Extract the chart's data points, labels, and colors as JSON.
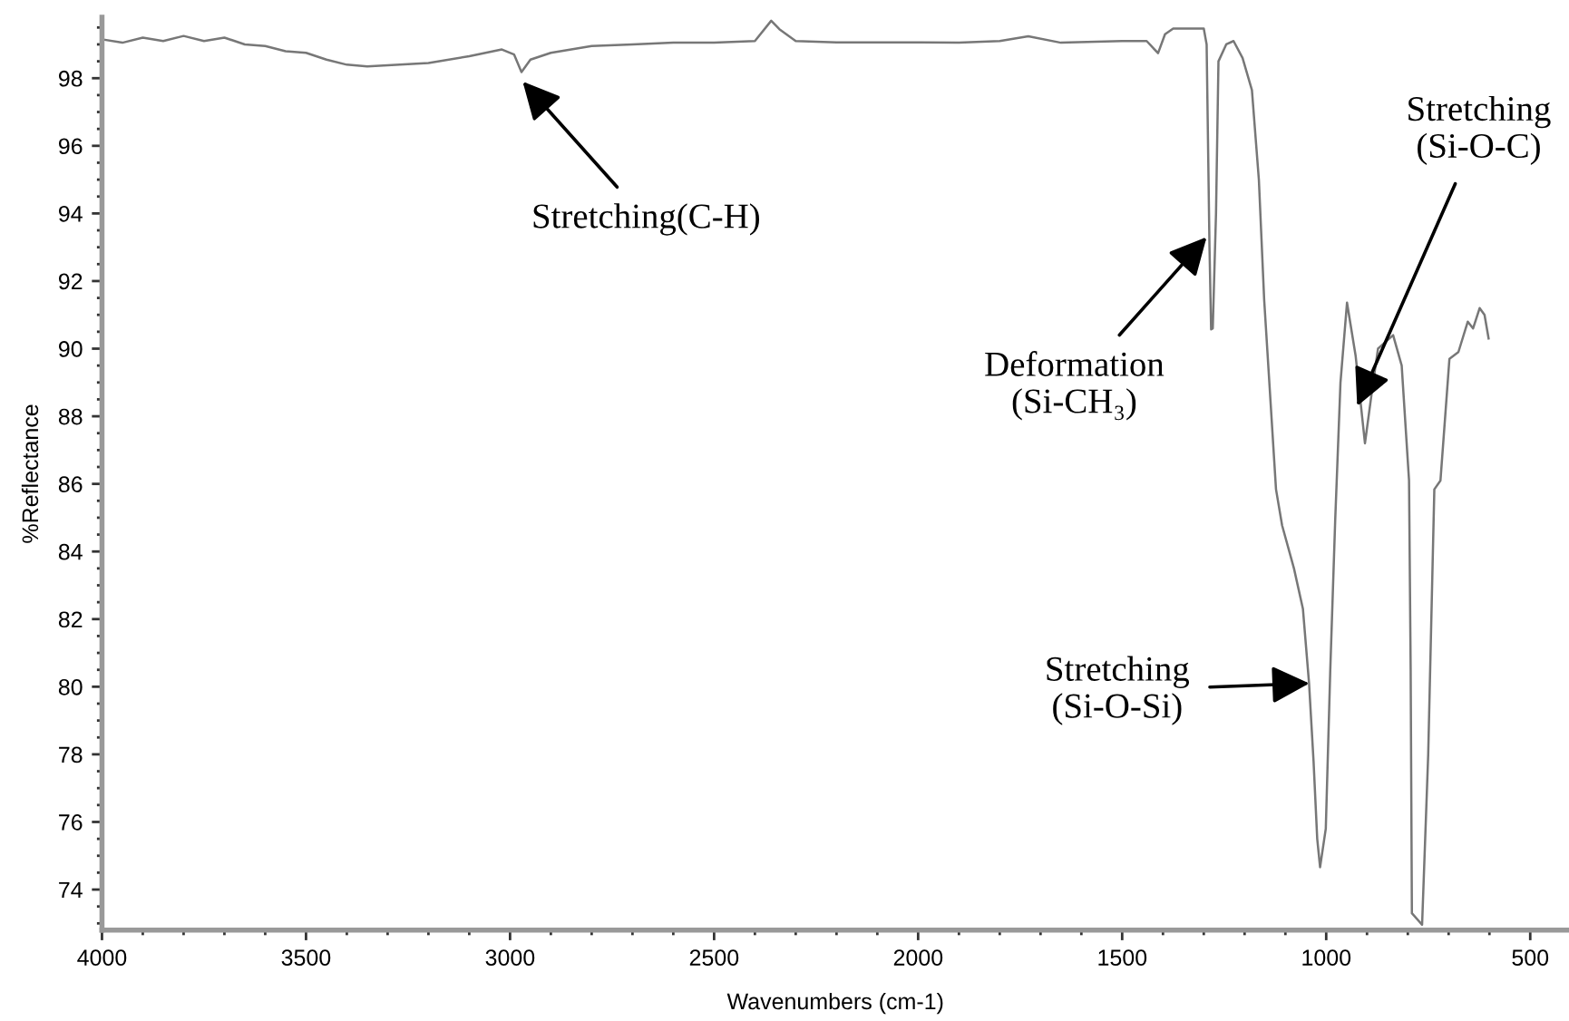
{
  "chart_data": {
    "type": "line",
    "xlabel": "Wavenumbers (cm-1)",
    "ylabel": "%Reflectance",
    "xlim": [
      4000,
      405
    ],
    "ylim": [
      72.8,
      99.8
    ],
    "xticks": [
      4000,
      3500,
      3000,
      2500,
      2000,
      1500,
      1000,
      500
    ],
    "yticks": [
      74,
      76,
      78,
      80,
      82,
      84,
      86,
      88,
      90,
      92,
      94,
      96,
      98
    ],
    "grid": false,
    "legend": false,
    "marker": "none",
    "line_style": "solid",
    "series": [
      {
        "color": "#777777",
        "x": [
          4000,
          3950,
          3900,
          3850,
          3800,
          3750,
          3700,
          3650,
          3600,
          3550,
          3500,
          3450,
          3400,
          3350,
          3300,
          3200,
          3100,
          3020,
          2990,
          2972,
          2950,
          2900,
          2800,
          2700,
          2600,
          2500,
          2400,
          2360,
          2340,
          2300,
          2200,
          2000,
          1900,
          1800,
          1730,
          1650,
          1500,
          1440,
          1412,
          1395,
          1375,
          1300,
          1293,
          1286,
          1282,
          1278,
          1270,
          1264,
          1245,
          1227,
          1205,
          1182,
          1165,
          1152,
          1123,
          1108,
          1079,
          1057,
          1042,
          1031,
          1022,
          1015,
          1001,
          990,
          978,
          965,
          949,
          928,
          905,
          885,
          873,
          836,
          815,
          797,
          793,
          790,
          765,
          750,
          735,
          720,
          698,
          676,
          653,
          640,
          624,
          612,
          602
        ],
        "values": [
          99.15,
          99.05,
          99.2,
          99.1,
          99.25,
          99.1,
          99.2,
          99.0,
          98.95,
          98.8,
          98.75,
          98.55,
          98.4,
          98.35,
          98.38,
          98.45,
          98.65,
          98.85,
          98.7,
          98.18,
          98.55,
          98.75,
          98.95,
          99.0,
          99.05,
          99.05,
          99.1,
          99.7,
          99.45,
          99.1,
          99.06,
          99.06,
          99.05,
          99.1,
          99.24,
          99.05,
          99.1,
          99.1,
          98.74,
          99.3,
          99.47,
          99.47,
          99.0,
          93.0,
          90.57,
          90.6,
          94.0,
          98.5,
          99.0,
          99.1,
          98.6,
          97.65,
          95.0,
          91.45,
          85.84,
          84.77,
          83.5,
          82.3,
          80.1,
          77.8,
          75.5,
          74.66,
          75.8,
          80.5,
          84.9,
          89.0,
          91.36,
          89.8,
          87.2,
          89.0,
          90.0,
          90.4,
          89.5,
          86.1,
          80.5,
          73.3,
          72.96,
          78.0,
          85.84,
          86.1,
          89.7,
          89.9,
          90.8,
          90.6,
          91.2,
          91.0,
          90.3
        ]
      }
    ],
    "annotations": [
      {
        "text": "Stretching(C-H)",
        "x": 2969,
        "y": 97.9
      },
      {
        "text": "Deformation\n(Si-CH₃)",
        "x": 1293,
        "y": 93.3
      },
      {
        "text": "Stretching\n(Si-O-C)",
        "x": 924,
        "y": 88.3
      },
      {
        "text": "Stretching\n(Si-O-Si)",
        "x": 1041,
        "y": 80.1
      }
    ]
  }
}
